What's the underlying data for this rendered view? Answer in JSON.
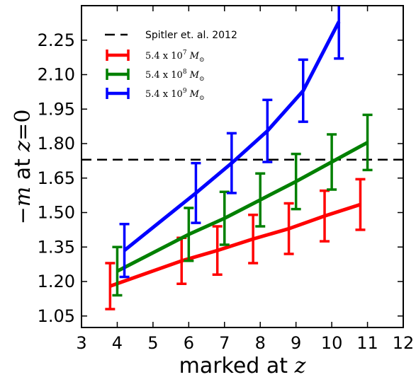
{
  "chart_data": {
    "type": "line",
    "x_ticks": [
      "3",
      "4",
      "5",
      "6",
      "7",
      "8",
      "9",
      "10",
      "11",
      "12"
    ],
    "y_ticks": [
      "1.05",
      "1.20",
      "1.35",
      "1.50",
      "1.65",
      "1.80",
      "1.95",
      "2.10",
      "2.25"
    ],
    "xlim": [
      3,
      12
    ],
    "ylim": [
      1.0,
      2.4
    ],
    "xlabel": "marked at z",
    "ylabel": "−m at z=0",
    "reference_line": {
      "label": "Spitler et. al. 2012",
      "y": 1.73,
      "color": "#000000"
    },
    "legend_position": "top-left",
    "series": [
      {
        "name": "5.4 x 10^7 M⊙",
        "color": "#ff0000",
        "x": [
          3.8,
          5.8,
          6.8,
          7.8,
          8.8,
          9.8,
          10.8
        ],
        "y": [
          1.18,
          1.29,
          1.335,
          1.385,
          1.43,
          1.485,
          1.535
        ],
        "err": [
          0.1,
          0.1,
          0.105,
          0.105,
          0.11,
          0.11,
          0.11
        ]
      },
      {
        "name": "5.4 x 10^8 M⊙",
        "color": "#008000",
        "x": [
          4.0,
          6.0,
          7.0,
          8.0,
          9.0,
          10.0,
          11.0
        ],
        "y": [
          1.245,
          1.405,
          1.475,
          1.555,
          1.635,
          1.72,
          1.805
        ],
        "err": [
          0.105,
          0.115,
          0.115,
          0.115,
          0.12,
          0.12,
          0.12
        ]
      },
      {
        "name": "5.4 x 10^9 M⊙",
        "color": "#0000ff",
        "x": [
          4.2,
          6.2,
          7.2,
          8.2,
          9.2,
          10.2
        ],
        "y": [
          1.335,
          1.585,
          1.715,
          1.855,
          2.03,
          2.33
        ],
        "err": [
          0.115,
          0.13,
          0.13,
          0.135,
          0.135,
          0.16
        ]
      }
    ],
    "legend": [
      {
        "text": "Spitler et. al. 2012",
        "kind": "dashed",
        "color": "#000000"
      },
      {
        "base": "5.4 x 10",
        "exp": "7",
        "unit": "M",
        "sub": "⊙",
        "color": "#ff0000"
      },
      {
        "base": "5.4 x 10",
        "exp": "8",
        "unit": "M",
        "sub": "⊙",
        "color": "#008000"
      },
      {
        "base": "5.4 x 10",
        "exp": "9",
        "unit": "M",
        "sub": "⊙",
        "color": "#0000ff"
      }
    ]
  }
}
